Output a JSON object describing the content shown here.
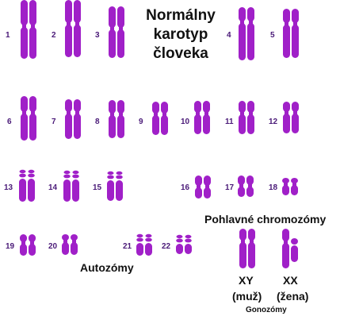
{
  "title": {
    "line1": "Normálny",
    "line2": "karotyp",
    "line3": "človeka"
  },
  "labels": {
    "autosomes": "Autozómy",
    "sex_chromosomes": "Pohlavné chromozómy",
    "xy": "XY",
    "xx": "XX",
    "male": "(muž)",
    "female": "(žena)",
    "gonosomes": "Gonozómy"
  },
  "colors": {
    "chromosome": "#a020c8",
    "highlight": "#c660e6",
    "number": "#4a1a78",
    "text": "#111111"
  },
  "chromosomes": [
    "1",
    "2",
    "3",
    "4",
    "5",
    "6",
    "7",
    "8",
    "9",
    "10",
    "11",
    "12",
    "13",
    "14",
    "15",
    "16",
    "17",
    "18",
    "19",
    "20",
    "21",
    "22"
  ]
}
